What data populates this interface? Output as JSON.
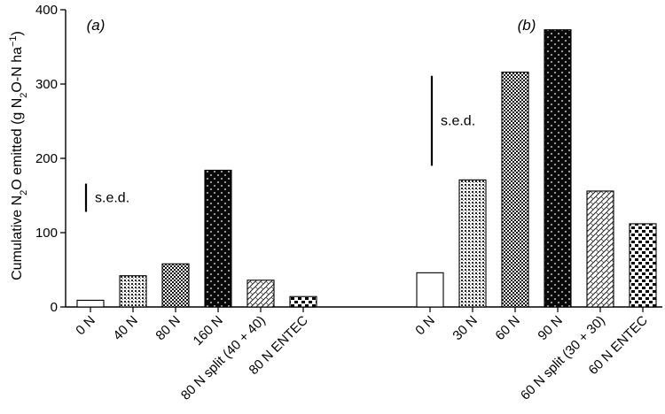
{
  "chart_data": {
    "type": "bar",
    "ylabel_parts": [
      "Cumulative N",
      "2",
      "O emitted (g N",
      "2",
      "O-N ha",
      "−1",
      ")"
    ],
    "ylim": [
      0,
      400
    ],
    "yticks": [
      "0",
      "100",
      "200",
      "300",
      "400"
    ],
    "grid": false,
    "panels": [
      {
        "label": "(a)",
        "categories": [
          "0 N",
          "40 N",
          "80 N",
          "160 N",
          "80 N split (40 + 40)",
          "80 N ENTEC"
        ],
        "values": [
          9,
          42,
          58,
          184,
          36,
          14
        ],
        "patterns": [
          "white",
          "fine-dots",
          "checker",
          "black-dots",
          "weave",
          "blocks"
        ],
        "sed": {
          "label": "s.e.d.",
          "from": 128,
          "to": 166
        }
      },
      {
        "label": "(b)",
        "categories": [
          "0 N",
          "30 N",
          "60 N",
          "90 N",
          "60 N split (30 + 30)",
          "60 N ENTEC"
        ],
        "values": [
          46,
          171,
          316,
          373,
          156,
          112
        ],
        "patterns": [
          "white",
          "fine-dots",
          "checker",
          "black-dots",
          "weave",
          "blocks"
        ],
        "sed": {
          "label": "s.e.d.",
          "from": 190,
          "to": 311
        }
      }
    ]
  }
}
